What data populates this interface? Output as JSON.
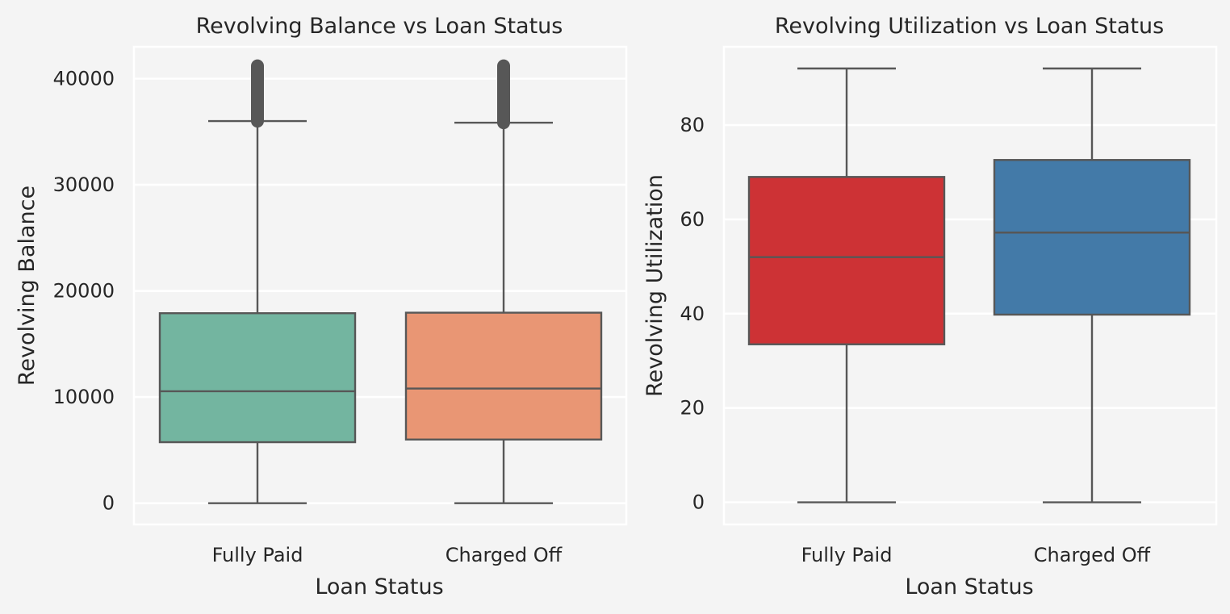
{
  "colors": {
    "figure_bg": "#f4f4f4",
    "grid": "#ffffff",
    "line": "#575757",
    "outlier": "#575757"
  },
  "chart_data": [
    {
      "type": "box",
      "title": "Revolving Balance vs Loan Status",
      "xlabel": "Loan Status",
      "ylabel": "Revolving Balance",
      "categories": [
        "Fully Paid",
        "Charged Off"
      ],
      "ylim": [
        -2000,
        43000
      ],
      "yticks": [
        {
          "value": 0,
          "label": "0"
        },
        {
          "value": 10000,
          "label": "10000"
        },
        {
          "value": 20000,
          "label": "20000"
        },
        {
          "value": 30000,
          "label": "30000"
        },
        {
          "value": 40000,
          "label": "40000"
        }
      ],
      "grid": true,
      "boxes": [
        {
          "category": "Fully Paid",
          "whisker_low": 0,
          "q1": 5750,
          "median": 10550,
          "q3": 17900,
          "whisker_high": 36000,
          "outliers_range": [
            36000,
            41200
          ],
          "color": "#73b5a0"
        },
        {
          "category": "Charged Off",
          "whisker_low": 0,
          "q1": 6000,
          "median": 10800,
          "q3": 17950,
          "whisker_high": 35850,
          "outliers_range": [
            35850,
            41200
          ],
          "color": "#e99674"
        }
      ]
    },
    {
      "type": "box",
      "title": "Revolving Utilization vs Loan Status",
      "xlabel": "Loan Status",
      "ylabel": "Revolving Utilization",
      "categories": [
        "Fully Paid",
        "Charged Off"
      ],
      "ylim": [
        -4.7,
        96.6
      ],
      "yticks": [
        {
          "value": 0,
          "label": "0"
        },
        {
          "value": 20,
          "label": "20"
        },
        {
          "value": 40,
          "label": "40"
        },
        {
          "value": 60,
          "label": "60"
        },
        {
          "value": 80,
          "label": "80"
        }
      ],
      "grid": true,
      "boxes": [
        {
          "category": "Fully Paid",
          "whisker_low": 0,
          "q1": 33.5,
          "median": 52.0,
          "q3": 69.0,
          "whisker_high": 92.0,
          "outliers_range": null,
          "color": "#cd3235"
        },
        {
          "category": "Charged Off",
          "whisker_low": 0,
          "q1": 39.8,
          "median": 57.2,
          "q3": 72.6,
          "whisker_high": 92.0,
          "outliers_range": null,
          "color": "#437aa8"
        }
      ]
    }
  ]
}
